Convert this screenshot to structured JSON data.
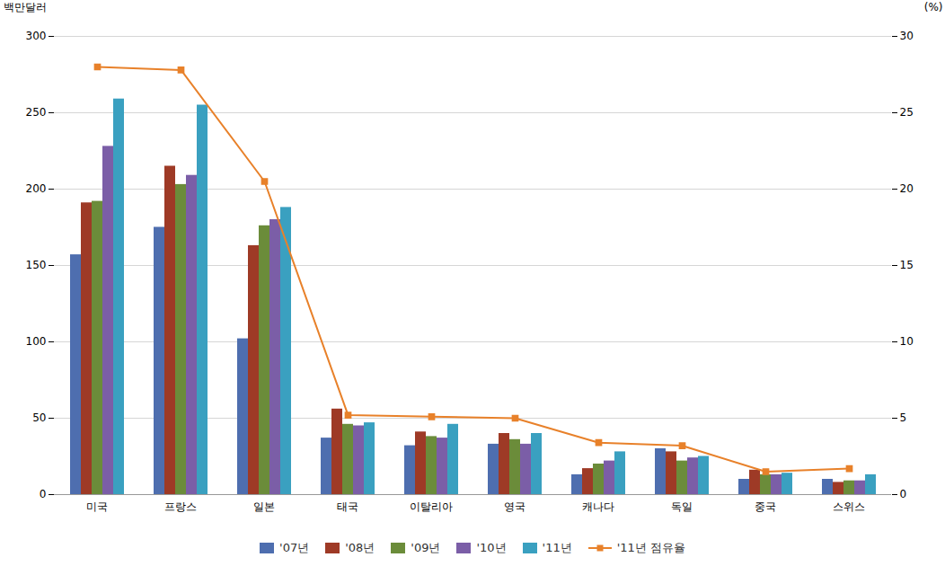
{
  "chart_data": {
    "type": "bar",
    "categories": [
      "미국",
      "프랑스",
      "일본",
      "태국",
      "이탈리아",
      "영국",
      "캐나다",
      "독일",
      "중국",
      "스위스"
    ],
    "series": [
      {
        "name": "'07년",
        "color": "#4E6EAF",
        "values": [
          157,
          175,
          102,
          37,
          32,
          33,
          13,
          30,
          10,
          10
        ]
      },
      {
        "name": "'08년",
        "color": "#9E3A26",
        "values": [
          191,
          215,
          163,
          56,
          41,
          40,
          17,
          28,
          16,
          8
        ]
      },
      {
        "name": "'09년",
        "color": "#6B8C3A",
        "values": [
          192,
          203,
          176,
          46,
          38,
          36,
          20,
          22,
          13,
          9
        ]
      },
      {
        "name": "'10년",
        "color": "#7B5EA7",
        "values": [
          228,
          209,
          180,
          45,
          37,
          33,
          22,
          24,
          13,
          9
        ]
      },
      {
        "name": "'11년",
        "color": "#3AA0C0",
        "values": [
          259,
          255,
          188,
          47,
          46,
          40,
          28,
          25,
          14,
          13
        ]
      },
      {
        "name": "'11년 점유율",
        "color": "#E8812A",
        "type": "line",
        "marker": "square",
        "axis": "y2",
        "values": [
          28.0,
          27.8,
          20.5,
          5.2,
          5.1,
          5.0,
          3.4,
          3.2,
          1.5,
          1.7
        ]
      }
    ],
    "ylabel": "백만달러",
    "y2label": "(%)",
    "ylim": [
      0,
      300
    ],
    "yticks": [
      0,
      50,
      100,
      150,
      200,
      250,
      300
    ],
    "y2lim": [
      0,
      30
    ],
    "y2ticks": [
      0,
      5,
      10,
      15,
      20,
      25,
      30
    ],
    "grid": true,
    "legend": "bottom"
  }
}
